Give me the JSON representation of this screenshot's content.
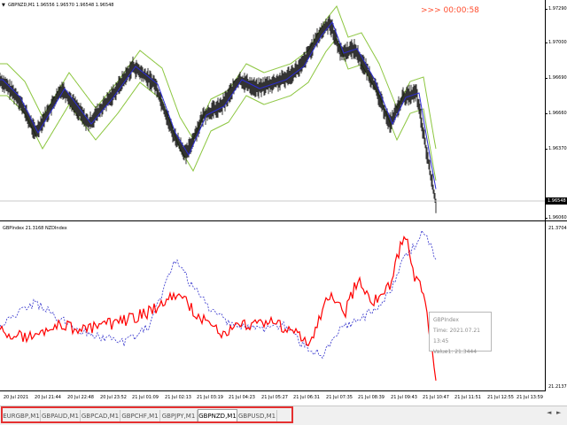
{
  "price_chart": {
    "title": "GBPNZD,M1  1.96556 1.96570 1.96548 1.96548",
    "timer": ">>> 00:00:58",
    "current_price": "1.96548",
    "y_ticks": [
      "1.97290",
      "1.97000",
      "1.96690",
      "1.96660",
      "1.96370",
      "1.96060"
    ],
    "series_colors": {
      "price": "#000000",
      "ma": "#2b2bd6",
      "bands": "#8cc63f"
    }
  },
  "indicator_chart": {
    "title": "GBPIndex 21.3168  NZDIndex",
    "y_max": "21.3704",
    "y_min": "21.2137",
    "series_colors": {
      "gbp": "#ff0000",
      "nzd": "#3333cc"
    }
  },
  "tooltip": {
    "line1": "GBPIndex",
    "line2": "Time: 2021.07.21 13:45",
    "line3": "Value1: 21.3444"
  },
  "time_axis": [
    "20 Jul 2021",
    "20 Jul 21:44",
    "20 Jul 22:48",
    "20 Jul 23:52",
    "21 Jul 01:09",
    "21 Jul 02:13",
    "21 Jul 03:19",
    "21 Jul 04:23",
    "21 Jul 05:27",
    "21 Jul 06:31",
    "21 Jul 07:35",
    "21 Jul 08:39",
    "21 Jul 09:43",
    "21 Jul 10:47",
    "21 Jul 11:51",
    "21 Jul 12:55",
    "21 Jul 13:59"
  ],
  "tabs": [
    "EURGBP,M1",
    "GBPAUD,M1",
    "GBPCAD,M1",
    "GBPCHF,M1",
    "GBPJPY,M1",
    "GBPNZD,M1",
    "GBPUSD,M1"
  ],
  "active_tab_index": 5,
  "nav": {
    "left": "◄",
    "right": "►"
  }
}
